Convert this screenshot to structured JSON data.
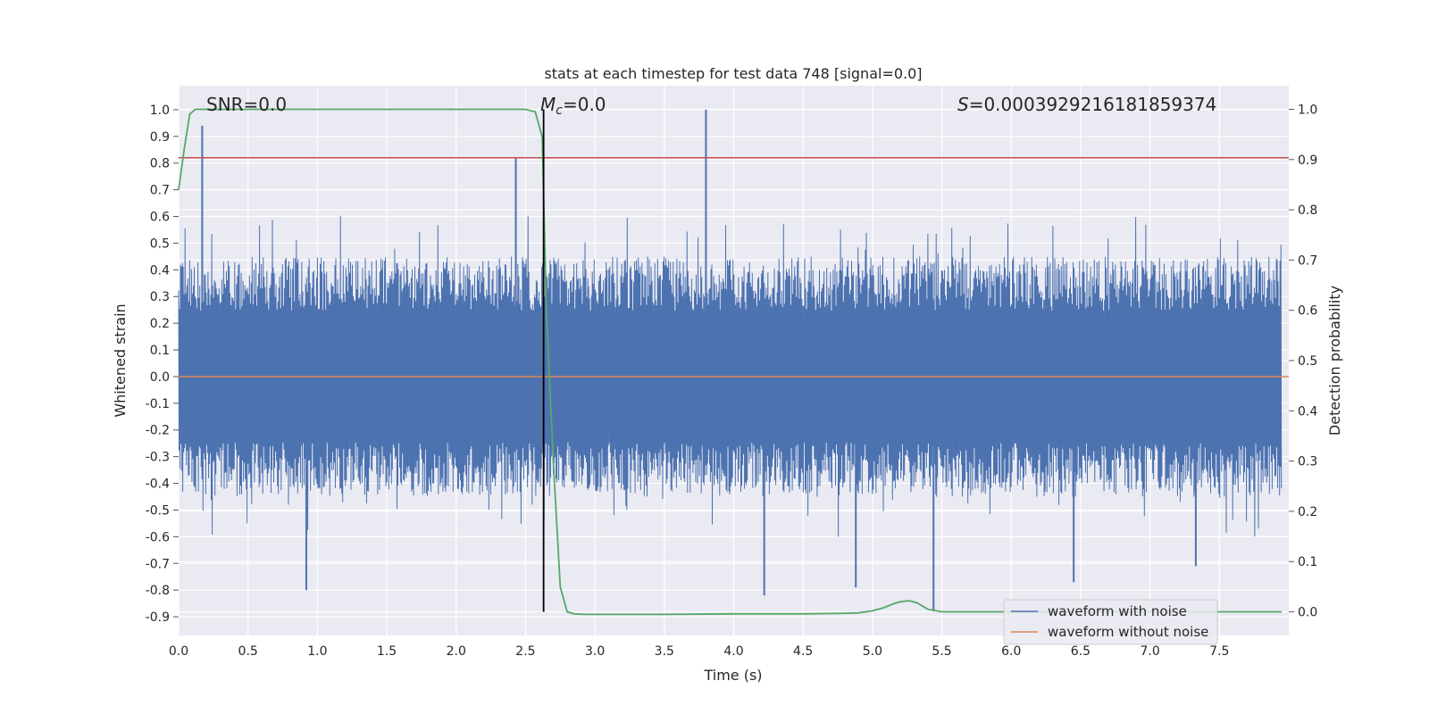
{
  "chart_data": {
    "type": "line",
    "title": "stats at each timestep for test data 748 [signal=0.0]",
    "xlabel": "Time (s)",
    "ylabel": "Whitened strain",
    "y2label": "Detection probability",
    "xlim": [
      0.0,
      8.0
    ],
    "ylim": [
      -0.97,
      1.09
    ],
    "y2lim": [
      -0.047,
      1.047
    ],
    "x_ticks": [
      "0.0",
      "0.5",
      "1.0",
      "1.5",
      "2.0",
      "2.5",
      "3.0",
      "3.5",
      "4.0",
      "4.5",
      "5.0",
      "5.5",
      "6.0",
      "6.5",
      "7.0",
      "7.5"
    ],
    "y_ticks": [
      "1.0",
      "0.9",
      "0.8",
      "0.7",
      "0.6",
      "0.5",
      "0.4",
      "0.3",
      "0.2",
      "0.1",
      "0.0",
      "-0.1",
      "-0.2",
      "-0.3",
      "-0.4",
      "-0.5",
      "-0.6",
      "-0.7",
      "-0.8",
      "-0.9"
    ],
    "y2_ticks": [
      "1.0",
      "0.9",
      "0.8",
      "0.7",
      "0.6",
      "0.5",
      "0.4",
      "0.3",
      "0.2",
      "0.1",
      "0.0"
    ],
    "grid": true,
    "legend_position": "lower-right",
    "annotations": {
      "snr": "SNR=0.0",
      "mc_symbol": "M",
      "mc_sub": "c",
      "mc_value": "=0.0",
      "s_symbol": "S",
      "s_value": "=0.0003929216181859374"
    },
    "colors": {
      "noisy": "#4c72b0",
      "clean": "#dd8452",
      "probability": "#55a868",
      "threshold": "#c44e52",
      "marker": "#000000",
      "background": "#eaeaf2",
      "grid": "#ffffff"
    },
    "threshold_y": 0.82,
    "marker_x": 2.63,
    "series": [
      {
        "name": "waveform with noise",
        "axis": "left",
        "description_of_shape": "dense noise band roughly between -0.45 and 0.45 with spikes",
        "envelope_low": -0.45,
        "envelope_high": 0.45,
        "spikes": [
          {
            "x": 0.17,
            "y": 0.94
          },
          {
            "x": 0.92,
            "y": -0.8
          },
          {
            "x": 2.43,
            "y": 0.82
          },
          {
            "x": 3.8,
            "y": 1.0
          },
          {
            "x": 4.22,
            "y": -0.82
          },
          {
            "x": 4.88,
            "y": -0.79
          },
          {
            "x": 5.44,
            "y": -0.88
          },
          {
            "x": 6.45,
            "y": -0.77
          },
          {
            "x": 7.33,
            "y": -0.71
          }
        ]
      },
      {
        "name": "waveform without noise",
        "axis": "left",
        "x": [
          0.0,
          8.0
        ],
        "y": [
          0.0,
          0.0
        ]
      },
      {
        "name": "detection probability",
        "axis": "right",
        "x": [
          0.0,
          0.04,
          0.08,
          0.12,
          0.2,
          0.5,
          1.0,
          1.5,
          2.0,
          2.3,
          2.5,
          2.57,
          2.62,
          2.65,
          2.7,
          2.75,
          2.8,
          2.85,
          2.92,
          3.0,
          3.5,
          4.0,
          4.5,
          4.8,
          4.9,
          5.0,
          5.08,
          5.15,
          5.2,
          5.26,
          5.32,
          5.4,
          5.5,
          6.0,
          7.0,
          7.95
        ],
        "y": [
          0.84,
          0.92,
          0.99,
          1.0,
          1.0,
          1.0,
          1.0,
          1.0,
          1.0,
          1.0,
          1.0,
          0.995,
          0.945,
          0.6,
          0.3,
          0.05,
          0.0,
          -0.004,
          -0.005,
          -0.005,
          -0.005,
          -0.004,
          -0.004,
          -0.003,
          -0.002,
          0.002,
          0.008,
          0.016,
          0.02,
          0.022,
          0.018,
          0.005,
          0.0,
          0.0,
          0.0,
          0.0
        ]
      }
    ]
  }
}
